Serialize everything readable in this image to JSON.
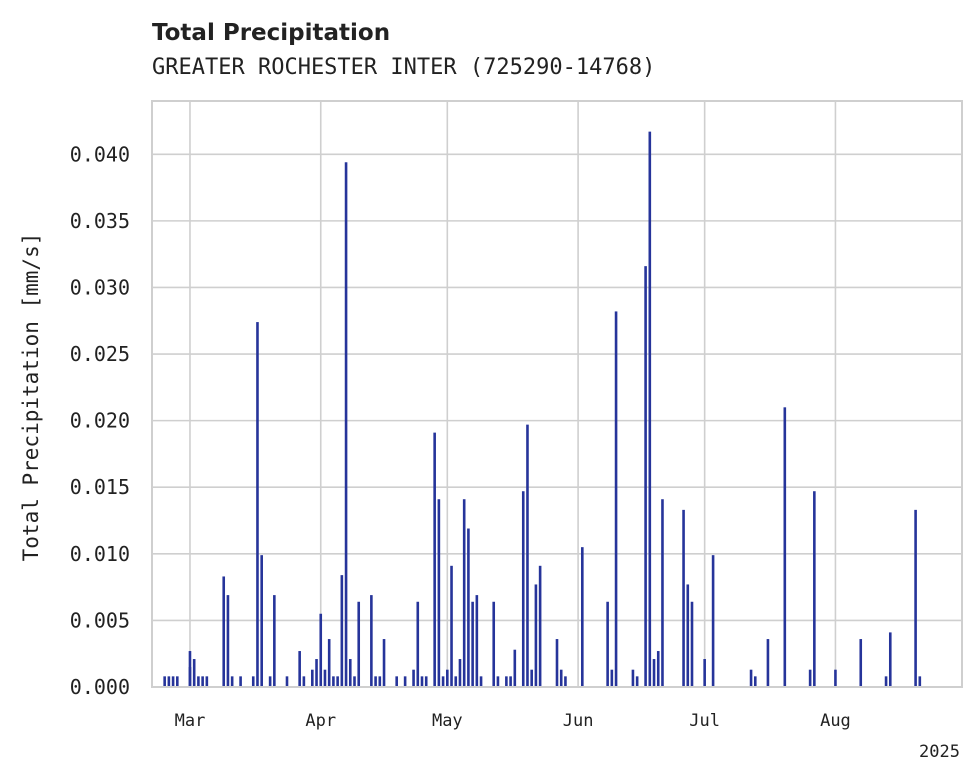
{
  "chart_data": {
    "type": "bar",
    "title": "Total Precipitation",
    "subtitle": "GREATER ROCHESTER INTER (725290-14768)",
    "xlabel": "",
    "ylabel": "Total Precipitation [mm/s]",
    "xlim": [
      "2025-02-20",
      "2025-08-31"
    ],
    "ylim": [
      0,
      0.044
    ],
    "y_ticks": [
      "0.000",
      "0.005",
      "0.010",
      "0.015",
      "0.020",
      "0.025",
      "0.030",
      "0.035",
      "0.040"
    ],
    "y_tick_values": [
      0,
      0.005,
      0.01,
      0.015,
      0.02,
      0.025,
      0.03,
      0.035,
      0.04
    ],
    "x_ticks": [
      {
        "label": "Mar",
        "date": "2025-03-01"
      },
      {
        "label": "Apr",
        "date": "2025-04-01"
      },
      {
        "label": "May",
        "date": "2025-05-01"
      },
      {
        "label": "Jun",
        "date": "2025-06-01"
      },
      {
        "label": "Jul",
        "date": "2025-07-01"
      },
      {
        "label": "Aug",
        "date": "2025-08-01"
      }
    ],
    "x_year_label": "2025",
    "grid": true,
    "bar_color": "#26349a",
    "series": [
      {
        "x": [
          "2025-02-23",
          "2025-02-24",
          "2025-02-25",
          "2025-02-26",
          "2025-02-29",
          "2025-03-01",
          "2025-03-02",
          "2025-03-03",
          "2025-03-04",
          "2025-03-05",
          "2025-03-09",
          "2025-03-10",
          "2025-03-11",
          "2025-03-13",
          "2025-03-16",
          "2025-03-17",
          "2025-03-18",
          "2025-03-20",
          "2025-03-21",
          "2025-03-24",
          "2025-03-27",
          "2025-03-28",
          "2025-03-30",
          "2025-03-31",
          "2025-04-01",
          "2025-04-02",
          "2025-04-03",
          "2025-04-04",
          "2025-04-05",
          "2025-04-06",
          "2025-04-07",
          "2025-04-08",
          "2025-04-09",
          "2025-04-10",
          "2025-04-13",
          "2025-04-14",
          "2025-04-15",
          "2025-04-16",
          "2025-04-19",
          "2025-04-21",
          "2025-04-23",
          "2025-04-24",
          "2025-04-25",
          "2025-04-26",
          "2025-04-28",
          "2025-04-29",
          "2025-04-30",
          "2025-05-01",
          "2025-05-02",
          "2025-05-03",
          "2025-05-04",
          "2025-05-05",
          "2025-05-06",
          "2025-05-07",
          "2025-05-08",
          "2025-05-09",
          "2025-05-12",
          "2025-05-13",
          "2025-05-15",
          "2025-05-16",
          "2025-05-17",
          "2025-05-19",
          "2025-05-20",
          "2025-05-21",
          "2025-05-22",
          "2025-05-23",
          "2025-05-27",
          "2025-05-28",
          "2025-05-29",
          "2025-06-02",
          "2025-06-08",
          "2025-06-09",
          "2025-06-10",
          "2025-06-14",
          "2025-06-15",
          "2025-06-17",
          "2025-06-18",
          "2025-06-19",
          "2025-06-20",
          "2025-06-21",
          "2025-06-26",
          "2025-06-27",
          "2025-06-28",
          "2025-07-01",
          "2025-07-03",
          "2025-07-12",
          "2025-07-13",
          "2025-07-16",
          "2025-07-20",
          "2025-07-26",
          "2025-07-27",
          "2025-08-01",
          "2025-08-07",
          "2025-08-13",
          "2025-08-14",
          "2025-08-20",
          "2025-08-21"
        ],
        "values": [
          0.0008,
          0.0008,
          0.0008,
          0.0008,
          0.0027,
          0.0015,
          0.0021,
          0.0008,
          0.0008,
          0.0008,
          0.0083,
          0.0069,
          0.0008,
          0.0008,
          0.0008,
          0.0274,
          0.0099,
          0.0008,
          0.0069,
          0.0008,
          0.0027,
          0.0008,
          0.0013,
          0.0021,
          0.0055,
          0.0013,
          0.0036,
          0.0008,
          0.0008,
          0.0084,
          0.0394,
          0.0021,
          0.0008,
          0.0064,
          0.0069,
          0.0008,
          0.0008,
          0.0036,
          0.0008,
          0.0008,
          0.0013,
          0.0064,
          0.0008,
          0.0008,
          0.0191,
          0.0141,
          0.0008,
          0.0013,
          0.0091,
          0.0008,
          0.0021,
          0.0141,
          0.0119,
          0.0064,
          0.0069,
          0.0008,
          0.0064,
          0.0008,
          0.0008,
          0.0008,
          0.0028,
          0.0147,
          0.0197,
          0.0013,
          0.0077,
          0.0091,
          0.0036,
          0.0013,
          0.0008,
          0.0105,
          0.0064,
          0.0013,
          0.0282,
          0.0013,
          0.0008,
          0.0316,
          0.0417,
          0.0021,
          0.0027,
          0.0141,
          0.0133,
          0.0077,
          0.0064,
          0.0021,
          0.0099,
          0.0013,
          0.0008,
          0.0036,
          0.021,
          0.0013,
          0.0147,
          0.0013,
          0.0036,
          0.0008,
          0.0041,
          0.0133,
          0.0008
        ]
      }
    ]
  }
}
